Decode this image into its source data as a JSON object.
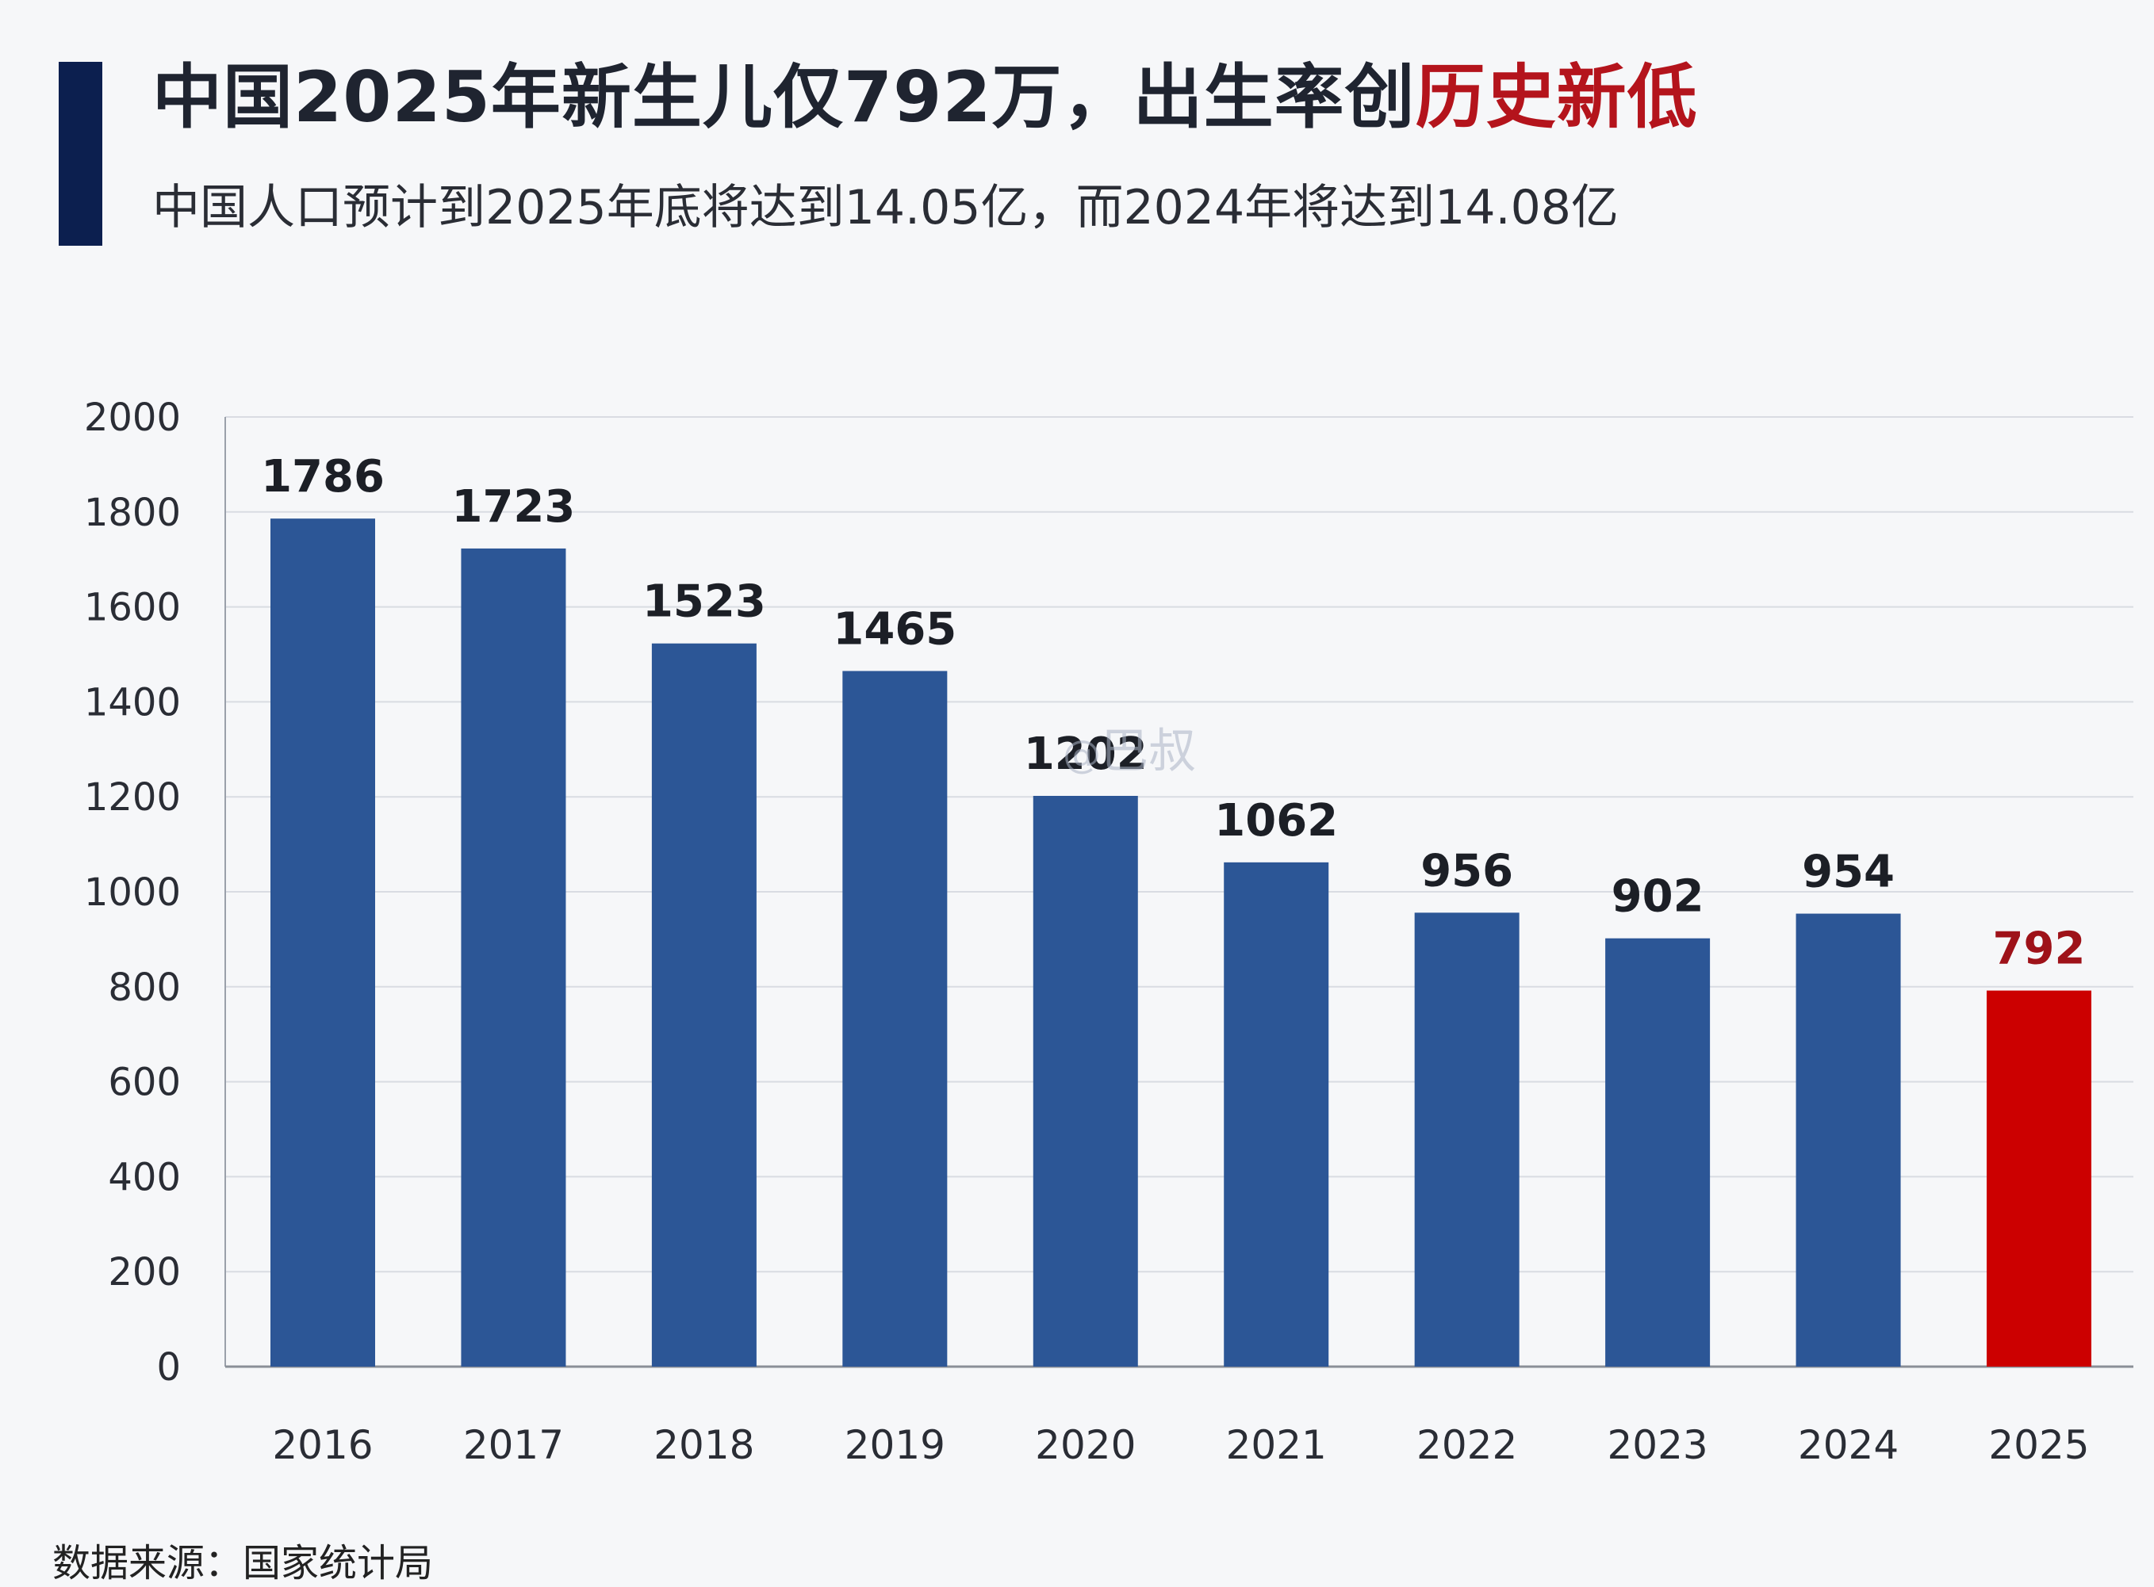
{
  "header": {
    "title_main": "中国2025年新生儿仅792万，出生率创",
    "title_highlight": "历史新低",
    "subtitle": "中国人口预计到2025年底将达到14.05亿，而2024年将达到14.08亿"
  },
  "watermark": {
    "at": "@",
    "text": "巴叔"
  },
  "footer": {
    "source": "数据来源：国家统计局"
  },
  "colors": {
    "bar": "#2c5696",
    "bar_highlight": "#cc0000",
    "label_highlight": "#9e1219",
    "accent": "#0c1f4f"
  },
  "chart_data": {
    "type": "bar",
    "categories": [
      "2016",
      "2017",
      "2018",
      "2019",
      "2020",
      "2021",
      "2022",
      "2023",
      "2024",
      "2025"
    ],
    "values": [
      1786,
      1723,
      1523,
      1465,
      1202,
      1062,
      956,
      902,
      954,
      792
    ],
    "data_labels": [
      "1786",
      "1723",
      "1523",
      "1465",
      "1202",
      "1062",
      "956",
      "902",
      "954",
      "792"
    ],
    "highlight_index": 9,
    "ylim": [
      0,
      2000
    ],
    "yticks": [
      0,
      200,
      400,
      600,
      800,
      1000,
      1200,
      1400,
      1600,
      1800,
      2000
    ],
    "grid": true,
    "legend": "none"
  }
}
